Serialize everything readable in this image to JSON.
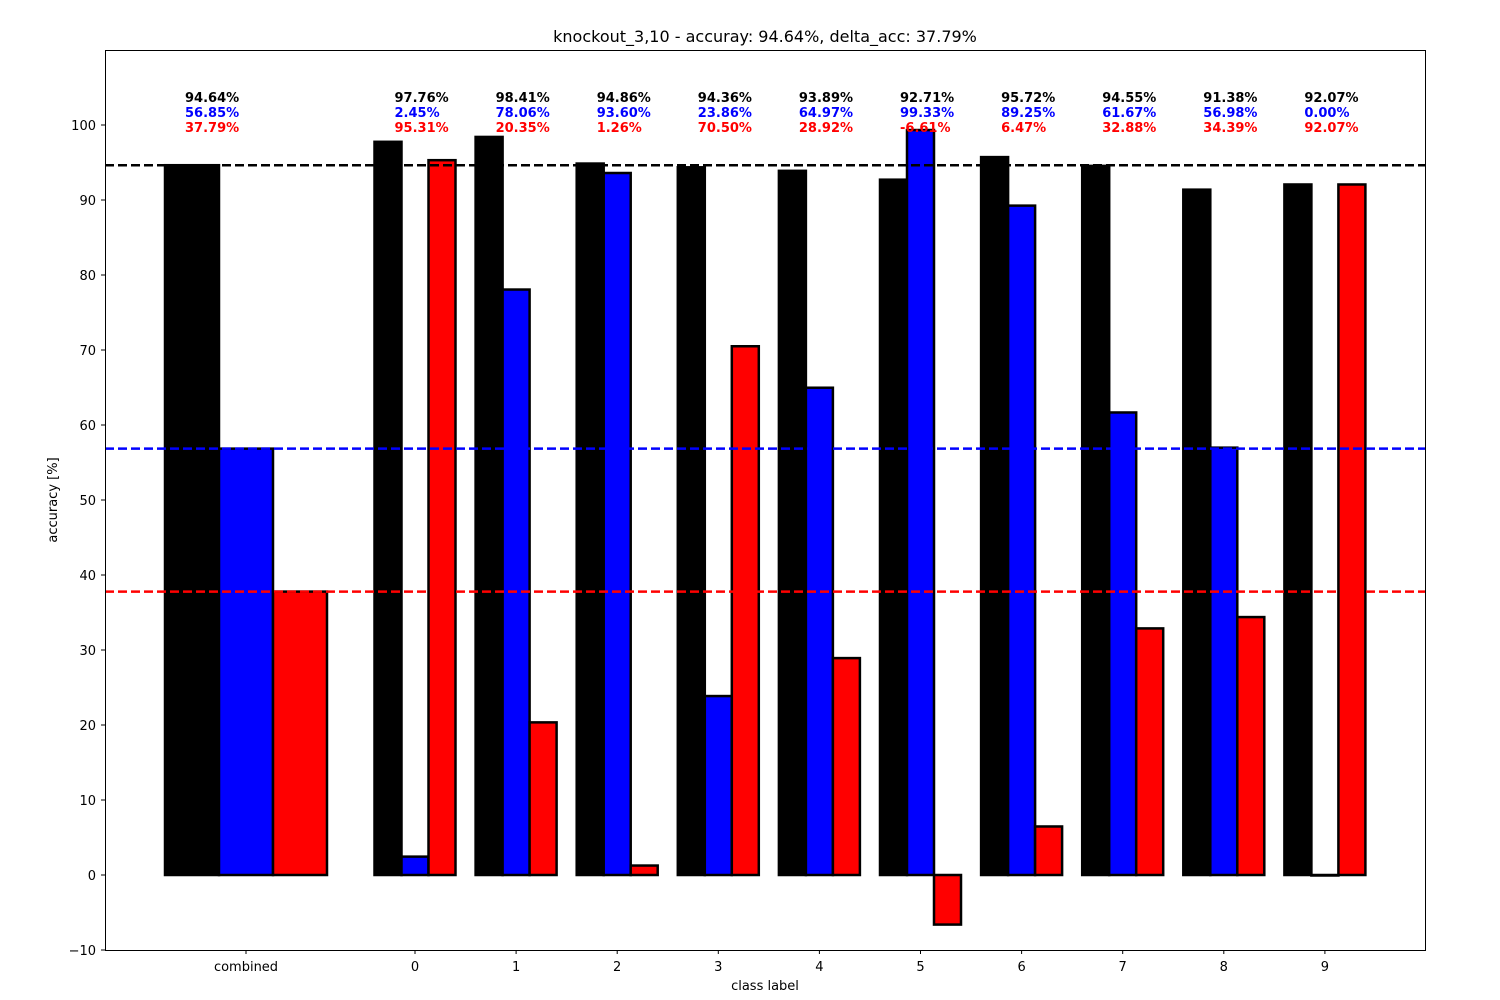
{
  "chart_data": {
    "type": "bar",
    "title": "knockout_3,10 - accuray: 94.64%, delta_acc: 37.79%",
    "xlabel": "class label",
    "ylabel": "accuracy [%]",
    "ylim": [
      -10,
      110
    ],
    "yticks": [
      -10,
      0,
      10,
      20,
      30,
      40,
      50,
      60,
      70,
      80,
      90,
      100
    ],
    "categories": [
      "combined",
      "0",
      "1",
      "2",
      "3",
      "4",
      "5",
      "6",
      "7",
      "8",
      "9"
    ],
    "series": [
      {
        "color": "#000000",
        "values": [
          94.64,
          97.76,
          98.41,
          94.86,
          94.36,
          93.89,
          92.71,
          95.72,
          94.55,
          91.38,
          92.07
        ],
        "labels": [
          "94.64%",
          "97.76%",
          "98.41%",
          "94.86%",
          "94.36%",
          "93.89%",
          "92.71%",
          "95.72%",
          "94.55%",
          "91.38%",
          "92.07%"
        ]
      },
      {
        "color": "#0000ff",
        "values": [
          56.85,
          2.45,
          78.06,
          93.6,
          23.86,
          64.97,
          99.33,
          89.25,
          61.67,
          56.98,
          0.0
        ],
        "labels": [
          "56.85%",
          "2.45%",
          "78.06%",
          "93.60%",
          "23.86%",
          "64.97%",
          "99.33%",
          "89.25%",
          "61.67%",
          "56.98%",
          "0.00%"
        ]
      },
      {
        "color": "#ff0000",
        "values": [
          37.79,
          95.31,
          20.35,
          1.26,
          70.5,
          28.92,
          -6.61,
          6.47,
          32.88,
          34.39,
          92.07
        ],
        "labels": [
          "37.79%",
          "95.31%",
          "20.35%",
          "1.26%",
          "70.50%",
          "28.92%",
          "-6.61%",
          "6.47%",
          "32.88%",
          "34.39%",
          "92.07%"
        ]
      }
    ],
    "reference_lines": [
      {
        "value": 94.64,
        "color": "#000000",
        "style": "dashed"
      },
      {
        "value": 56.85,
        "color": "#0000ff",
        "style": "dashed"
      },
      {
        "value": 37.79,
        "color": "#ff0000",
        "style": "dashed"
      }
    ],
    "grid": false,
    "legend": "none"
  }
}
